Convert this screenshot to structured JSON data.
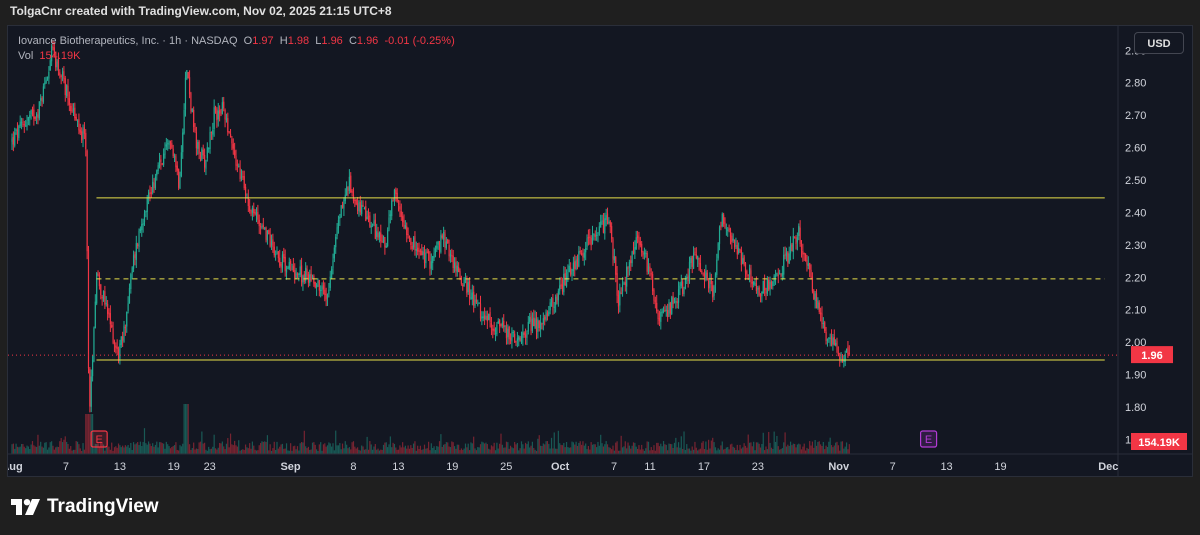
{
  "header": {
    "text": "TolgaCnr created with TradingView.com, Nov 02, 2025 21:15 UTC+8"
  },
  "legend": {
    "name": "Iovance Biotherapeutics, Inc.",
    "interval": "1h",
    "exchange": "NASDAQ",
    "o_label": "O",
    "o_value": "1.97",
    "h_label": "H",
    "h_value": "1.98",
    "l_label": "L",
    "l_value": "1.96",
    "c_label": "C",
    "c_value": "1.96",
    "change": "-0.01 (-0.25%)",
    "vol_label": "Vol",
    "vol_value": "154.19K"
  },
  "currency_button": {
    "label": "USD"
  },
  "brand": {
    "name": "TradingView",
    "icon": "tradingview-logo-icon"
  },
  "colors": {
    "up": "#22ab94",
    "down": "#f23645",
    "hline": "#e8e04a",
    "earnings": "#f23645",
    "upcoming_earnings": "#b43bd6",
    "price_label_bg": "#f23645"
  },
  "chart_data": {
    "type": "candlestick",
    "symbol": "Iovance Biotherapeutics, Inc.",
    "interval": "1h",
    "y_axis": {
      "ticks": [
        1.7,
        1.8,
        1.9,
        2.0,
        2.1,
        2.2,
        2.3,
        2.4,
        2.5,
        2.6,
        2.7,
        2.8,
        2.9
      ],
      "ylim": [
        1.655,
        2.975
      ]
    },
    "x_axis": {
      "ticks": [
        "Aug",
        "7",
        "13",
        "19",
        "23",
        "Sep",
        "8",
        "13",
        "19",
        "25",
        "Oct",
        "7",
        "11",
        "17",
        "23",
        "Nov",
        "7",
        "13",
        "19",
        "Dec"
      ],
      "bold_ticks": [
        "Aug",
        "Sep",
        "Oct",
        "Nov",
        "Dec"
      ]
    },
    "x_tick_positions_days": [
      0,
      6,
      12,
      18,
      22,
      31,
      38,
      43,
      49,
      55,
      61,
      67,
      71,
      77,
      83,
      92,
      98,
      104,
      110,
      122
    ],
    "x_range_days": [
      0,
      123
    ],
    "price_path_days": [
      0,
      1.5,
      3,
      4.5,
      6,
      7.5,
      8.2,
      8.6,
      9.4,
      10.5,
      11.8,
      12.4,
      13.5,
      14.8,
      16.5,
      17.8,
      18.6,
      19.4,
      20.5,
      21.5,
      22.5,
      23.6,
      25,
      26.5,
      28,
      30,
      32,
      33.5,
      35,
      36.5,
      37.5,
      38.5,
      40,
      41.5,
      42.5,
      43.5,
      45,
      46.5,
      48,
      49.5,
      51,
      52.5,
      54,
      55.5,
      56.5,
      57.5,
      59,
      60.5,
      62,
      63.5,
      65,
      66.5,
      67.5,
      68.5,
      69.5,
      71,
      72,
      73.5,
      75,
      76,
      77,
      78,
      79,
      80,
      81.5,
      83,
      84.5,
      86,
      87.5,
      88.5,
      89.5,
      90.5,
      91.5,
      92.5,
      93.3
    ],
    "price_path_values": [
      2.62,
      2.68,
      2.72,
      2.9,
      2.78,
      2.65,
      2.62,
      1.75,
      2.22,
      2.1,
      1.96,
      2.02,
      2.25,
      2.42,
      2.55,
      2.62,
      2.49,
      2.85,
      2.6,
      2.56,
      2.7,
      2.72,
      2.55,
      2.42,
      2.35,
      2.25,
      2.21,
      2.2,
      2.14,
      2.4,
      2.49,
      2.42,
      2.36,
      2.3,
      2.45,
      2.38,
      2.28,
      2.25,
      2.32,
      2.22,
      2.15,
      2.07,
      2.05,
      2.02,
      1.99,
      2.06,
      2.05,
      2.14,
      2.22,
      2.28,
      2.34,
      2.38,
      2.12,
      2.22,
      2.32,
      2.22,
      2.06,
      2.12,
      2.19,
      2.28,
      2.21,
      2.16,
      2.4,
      2.32,
      2.23,
      2.16,
      2.18,
      2.25,
      2.34,
      2.24,
      2.12,
      2.03,
      2.0,
      1.95,
      1.965
    ],
    "horizontal_lines": [
      {
        "value": 2.445,
        "style": "solid"
      },
      {
        "value": 2.195,
        "style": "dashed"
      },
      {
        "value": 1.945,
        "style": "solid"
      }
    ],
    "hline_days": [
      9.4,
      121.6
    ],
    "current_price": {
      "value": 1.96,
      "label": "1.96"
    },
    "volume_label": "154.19K",
    "earnings_markers": [
      {
        "day": 9.7,
        "label": "E",
        "style": "past"
      },
      {
        "day": 102,
        "label": "E",
        "style": "upcoming"
      }
    ]
  }
}
